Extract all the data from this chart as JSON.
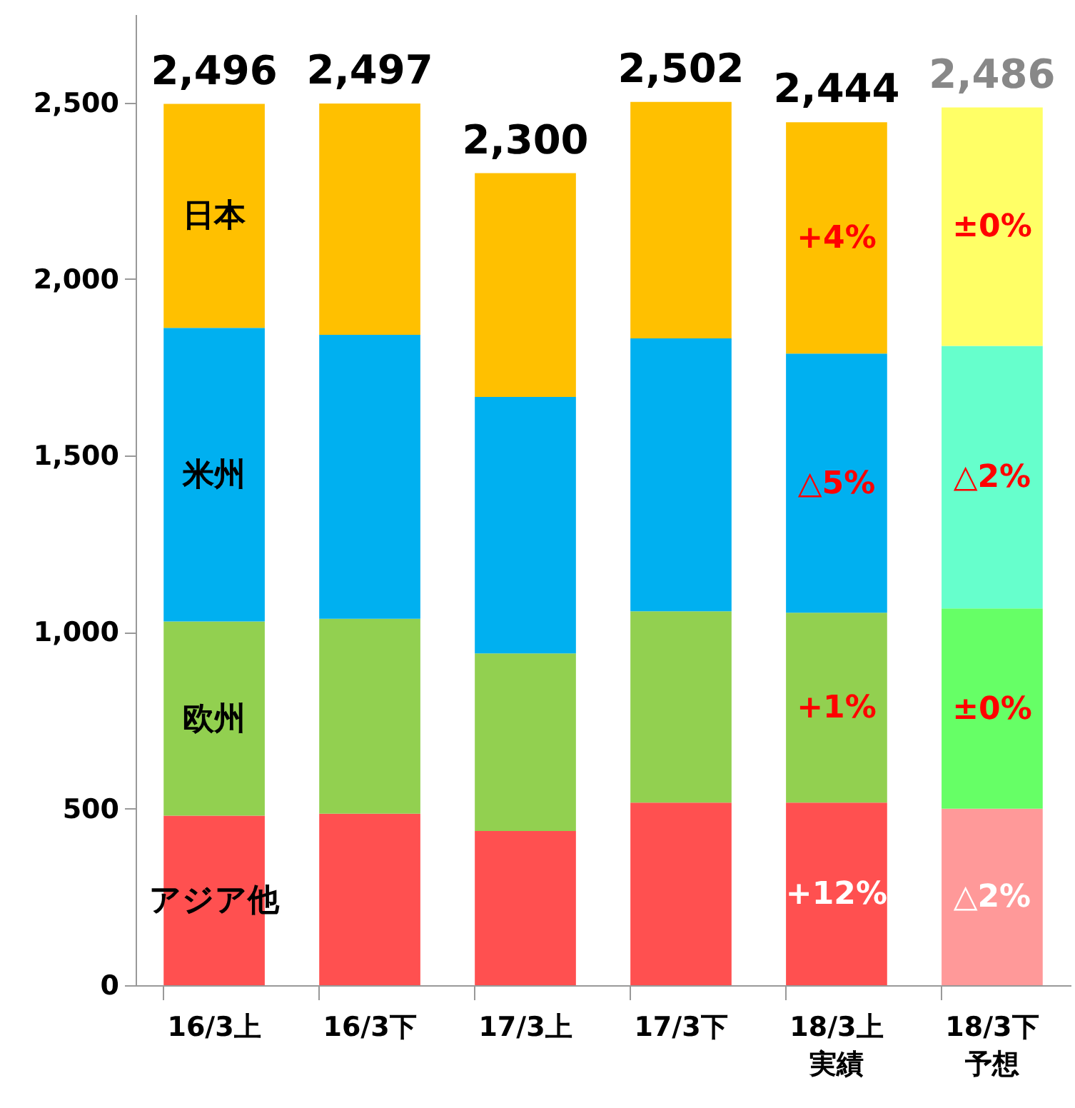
{
  "chart_data": {
    "type": "bar",
    "stacked": true,
    "legend": false,
    "grid": false,
    "categories": [
      "16/3上",
      "16/3下",
      "17/3上",
      "17/3下",
      "18/3上実績",
      "18/3下予想"
    ],
    "series": [
      {
        "name": "アジア他",
        "color": "#ff5050",
        "colors": [
          null,
          null,
          null,
          null,
          null,
          "#ff9999"
        ],
        "values": [
          480,
          486,
          437,
          517,
          517,
          500
        ]
      },
      {
        "name": "欧州",
        "color": "#92d050",
        "colors": [
          null,
          null,
          null,
          null,
          null,
          "#66ff66"
        ],
        "values": [
          550,
          552,
          503,
          542,
          538,
          567
        ]
      },
      {
        "name": "米州",
        "color": "#00b0f0",
        "colors": [
          null,
          null,
          null,
          null,
          null,
          "#66ffcc"
        ],
        "values": [
          832,
          804,
          726,
          773,
          734,
          744
        ]
      },
      {
        "name": "日本",
        "color": "#ffc000",
        "colors": [
          null,
          null,
          null,
          null,
          null,
          "#ffff66"
        ],
        "values": [
          634,
          655,
          634,
          670,
          655,
          675
        ]
      }
    ],
    "annotations": [
      "+12%",
      "+1%",
      "△5%",
      "+4%",
      "△2%",
      "±0%",
      "△2%",
      "±0%"
    ],
    "totals": [
      "2,496",
      "2,497",
      "2,300",
      "2,502",
      "2,444",
      "2,486"
    ],
    "ylim": [
      0,
      2750
    ],
    "yticks": [
      0,
      500,
      {
        "value": 1000,
        "label": "1,000"
      },
      {
        "value": 1500,
        "label": "1,500"
      },
      {
        "value": 2000,
        "label": "2,000"
      },
      {
        "value": 2500,
        "label": "2,500"
      }
    ]
  }
}
